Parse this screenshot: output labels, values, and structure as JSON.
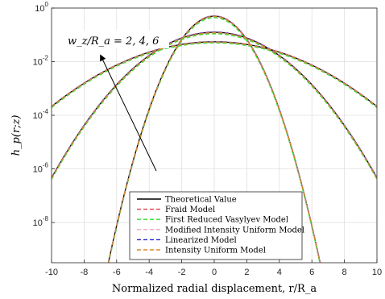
{
  "chart_data": {
    "type": "line",
    "xlabel": "Normalized radial displacement, r/R_a",
    "ylabel": "h_p(r;z)",
    "xlim": [
      -10,
      10
    ],
    "ylim_log10": [
      -9.5,
      0
    ],
    "y_scale": "log",
    "grid": true,
    "legend_position": "bottom-center",
    "x_ticks": [
      -10,
      -8,
      -6,
      -4,
      -2,
      0,
      2,
      4,
      6,
      8,
      10
    ],
    "x_tick_labels": [
      "-10",
      "-8",
      "-6",
      "-4",
      "-2",
      "0",
      "2",
      "4",
      "6",
      "8",
      "10"
    ],
    "y_ticks_log10": [
      -8,
      -6,
      -4,
      -2,
      0
    ],
    "y_tick_bases": [
      "10",
      "10",
      "10",
      "10",
      "10"
    ],
    "y_tick_exponents": [
      "-8",
      "-6",
      "-4",
      "-2",
      "0"
    ],
    "annotation": "w_z/R_a = 2, 4, 6",
    "series": [
      {
        "name": "Theoretical Value",
        "color": "#000000",
        "dash": "solid",
        "curves": [
          {
            "peak": 0.5,
            "w": 2
          },
          {
            "peak": 0.125,
            "w": 4
          },
          {
            "peak": 0.055,
            "w": 6
          }
        ]
      },
      {
        "name": "Fraid Model",
        "color": "#e0404a",
        "dash": "dashed",
        "curves": [
          {
            "peak": 0.48,
            "w": 2
          },
          {
            "peak": 0.12,
            "w": 4
          },
          {
            "peak": 0.055,
            "w": 6
          }
        ]
      },
      {
        "name": "First Reduced Vasylyev Model",
        "color": "#33dd33",
        "dash": "dashed",
        "curves": [
          {
            "peak": 0.44,
            "w": 2
          },
          {
            "peak": 0.11,
            "w": 4
          },
          {
            "peak": 0.05,
            "w": 6
          }
        ]
      },
      {
        "name": "Modified Intensity Uniform Model",
        "color": "#f2a0c0",
        "dash": "dashed",
        "curves": [
          {
            "peak": 0.52,
            "w": 2
          },
          {
            "peak": 0.13,
            "w": 4
          },
          {
            "peak": 0.057,
            "w": 6
          }
        ]
      },
      {
        "name": "Linearized Model",
        "color": "#2828c8",
        "dash": "dashed",
        "curves": [
          {
            "peak": 0.5,
            "w": 2
          },
          {
            "peak": 0.125,
            "w": 4
          },
          {
            "peak": 0.055,
            "w": 6
          }
        ]
      },
      {
        "name": "Intensity Uniform Model",
        "color": "#d98a2b",
        "dash": "dashed",
        "curves": [
          {
            "peak": 0.49,
            "w": 2
          },
          {
            "peak": 0.12,
            "w": 4
          },
          {
            "peak": 0.054,
            "w": 6
          }
        ]
      }
    ]
  }
}
